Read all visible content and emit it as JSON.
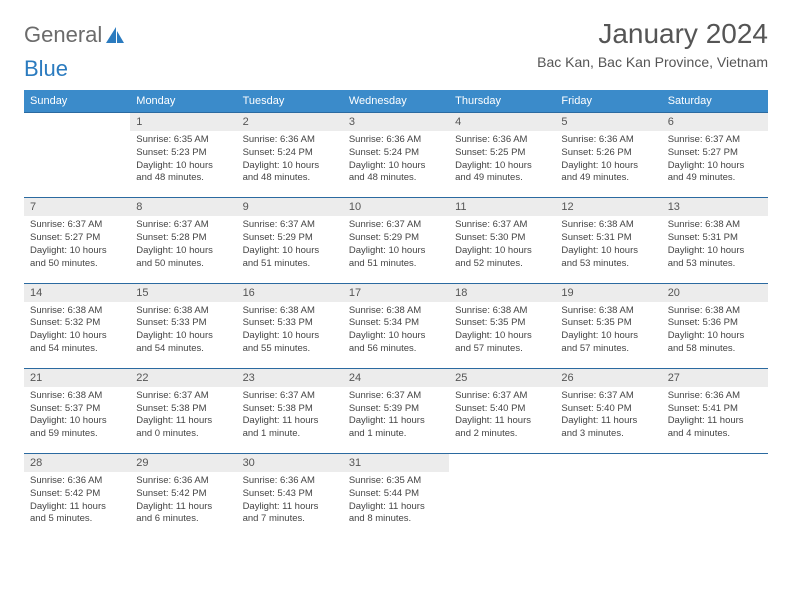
{
  "logo": {
    "text1": "General",
    "text2": "Blue"
  },
  "title": "January 2024",
  "location": "Bac Kan, Bac Kan Province, Vietnam",
  "colors": {
    "header_bg": "#3b8bca",
    "header_fg": "#ffffff",
    "daynum_bg": "#ececec",
    "rule": "#2b6aa0",
    "text": "#444444"
  },
  "day_names": [
    "Sunday",
    "Monday",
    "Tuesday",
    "Wednesday",
    "Thursday",
    "Friday",
    "Saturday"
  ],
  "weeks": [
    {
      "nums": [
        "",
        "1",
        "2",
        "3",
        "4",
        "5",
        "6"
      ],
      "cells": [
        null,
        {
          "sr": "6:35 AM",
          "ss": "5:23 PM",
          "dl": "10 hours and 48 minutes."
        },
        {
          "sr": "6:36 AM",
          "ss": "5:24 PM",
          "dl": "10 hours and 48 minutes."
        },
        {
          "sr": "6:36 AM",
          "ss": "5:24 PM",
          "dl": "10 hours and 48 minutes."
        },
        {
          "sr": "6:36 AM",
          "ss": "5:25 PM",
          "dl": "10 hours and 49 minutes."
        },
        {
          "sr": "6:36 AM",
          "ss": "5:26 PM",
          "dl": "10 hours and 49 minutes."
        },
        {
          "sr": "6:37 AM",
          "ss": "5:27 PM",
          "dl": "10 hours and 49 minutes."
        }
      ]
    },
    {
      "nums": [
        "7",
        "8",
        "9",
        "10",
        "11",
        "12",
        "13"
      ],
      "cells": [
        {
          "sr": "6:37 AM",
          "ss": "5:27 PM",
          "dl": "10 hours and 50 minutes."
        },
        {
          "sr": "6:37 AM",
          "ss": "5:28 PM",
          "dl": "10 hours and 50 minutes."
        },
        {
          "sr": "6:37 AM",
          "ss": "5:29 PM",
          "dl": "10 hours and 51 minutes."
        },
        {
          "sr": "6:37 AM",
          "ss": "5:29 PM",
          "dl": "10 hours and 51 minutes."
        },
        {
          "sr": "6:37 AM",
          "ss": "5:30 PM",
          "dl": "10 hours and 52 minutes."
        },
        {
          "sr": "6:38 AM",
          "ss": "5:31 PM",
          "dl": "10 hours and 53 minutes."
        },
        {
          "sr": "6:38 AM",
          "ss": "5:31 PM",
          "dl": "10 hours and 53 minutes."
        }
      ]
    },
    {
      "nums": [
        "14",
        "15",
        "16",
        "17",
        "18",
        "19",
        "20"
      ],
      "cells": [
        {
          "sr": "6:38 AM",
          "ss": "5:32 PM",
          "dl": "10 hours and 54 minutes."
        },
        {
          "sr": "6:38 AM",
          "ss": "5:33 PM",
          "dl": "10 hours and 54 minutes."
        },
        {
          "sr": "6:38 AM",
          "ss": "5:33 PM",
          "dl": "10 hours and 55 minutes."
        },
        {
          "sr": "6:38 AM",
          "ss": "5:34 PM",
          "dl": "10 hours and 56 minutes."
        },
        {
          "sr": "6:38 AM",
          "ss": "5:35 PM",
          "dl": "10 hours and 57 minutes."
        },
        {
          "sr": "6:38 AM",
          "ss": "5:35 PM",
          "dl": "10 hours and 57 minutes."
        },
        {
          "sr": "6:38 AM",
          "ss": "5:36 PM",
          "dl": "10 hours and 58 minutes."
        }
      ]
    },
    {
      "nums": [
        "21",
        "22",
        "23",
        "24",
        "25",
        "26",
        "27"
      ],
      "cells": [
        {
          "sr": "6:38 AM",
          "ss": "5:37 PM",
          "dl": "10 hours and 59 minutes."
        },
        {
          "sr": "6:37 AM",
          "ss": "5:38 PM",
          "dl": "11 hours and 0 minutes."
        },
        {
          "sr": "6:37 AM",
          "ss": "5:38 PM",
          "dl": "11 hours and 1 minute."
        },
        {
          "sr": "6:37 AM",
          "ss": "5:39 PM",
          "dl": "11 hours and 1 minute."
        },
        {
          "sr": "6:37 AM",
          "ss": "5:40 PM",
          "dl": "11 hours and 2 minutes."
        },
        {
          "sr": "6:37 AM",
          "ss": "5:40 PM",
          "dl": "11 hours and 3 minutes."
        },
        {
          "sr": "6:36 AM",
          "ss": "5:41 PM",
          "dl": "11 hours and 4 minutes."
        }
      ]
    },
    {
      "nums": [
        "28",
        "29",
        "30",
        "31",
        "",
        "",
        ""
      ],
      "cells": [
        {
          "sr": "6:36 AM",
          "ss": "5:42 PM",
          "dl": "11 hours and 5 minutes."
        },
        {
          "sr": "6:36 AM",
          "ss": "5:42 PM",
          "dl": "11 hours and 6 minutes."
        },
        {
          "sr": "6:36 AM",
          "ss": "5:43 PM",
          "dl": "11 hours and 7 minutes."
        },
        {
          "sr": "6:35 AM",
          "ss": "5:44 PM",
          "dl": "11 hours and 8 minutes."
        },
        null,
        null,
        null
      ]
    }
  ],
  "labels": {
    "sunrise": "Sunrise: ",
    "sunset": "Sunset: ",
    "daylight": "Daylight: "
  }
}
